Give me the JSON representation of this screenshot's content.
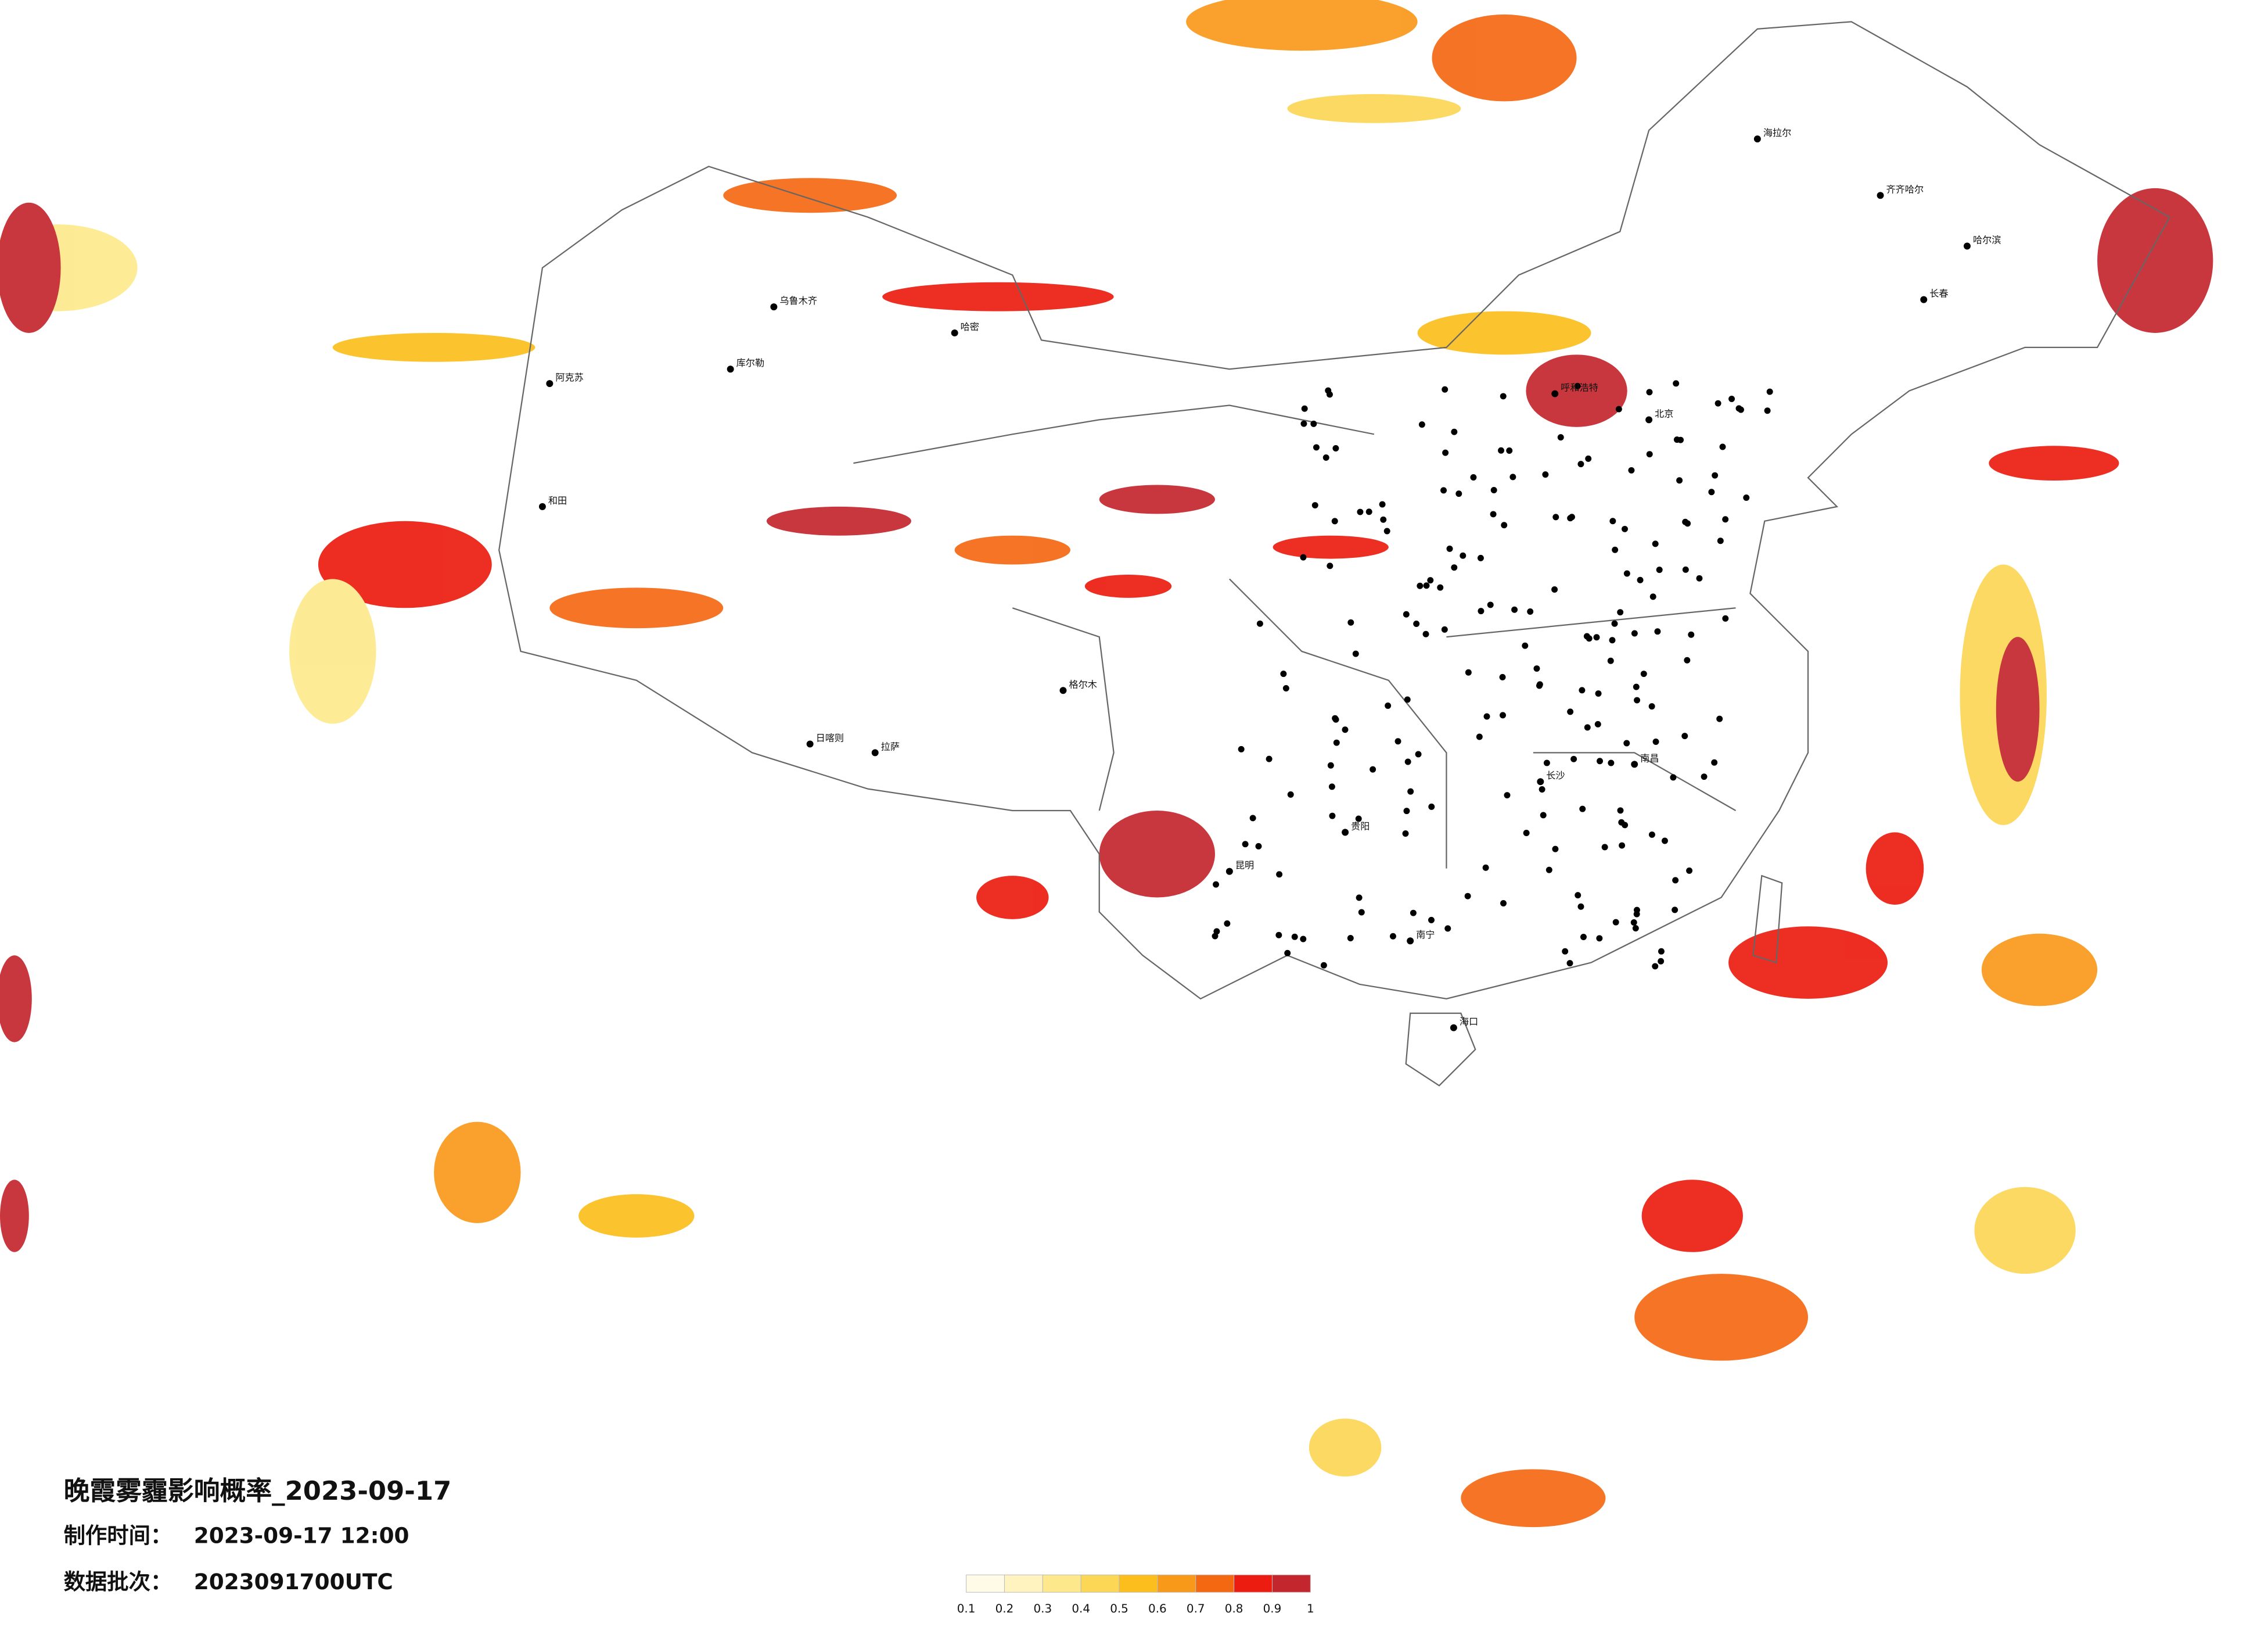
{
  "title": "晚霞雾霾影响概率_2023-09-17",
  "meta": [
    {
      "label": "制作时间：",
      "value": "2023-09-17 12:00"
    },
    {
      "label": "数据批次：",
      "value": "2023091700UTC"
    }
  ],
  "legend": {
    "ticks": [
      0.1,
      0.2,
      0.3,
      0.4,
      0.5,
      0.6,
      0.7,
      0.8,
      0.9,
      1
    ],
    "colors": [
      "#fffbe6",
      "#fff3bf",
      "#fde98c",
      "#fcd655",
      "#fbbe1c",
      "#f8991a",
      "#f46812",
      "#ec1c10",
      "#c4262e"
    ]
  },
  "cities": [
    "北京",
    "呼和浩特",
    "哈尔滨",
    "长春",
    "齐齐哈尔",
    "海拉尔",
    "阿克苏",
    "和田",
    "拉萨",
    "日喀则",
    "昆明",
    "海口",
    "乌鲁木齐",
    "库尔勒",
    "哈密",
    "格尔木",
    "南昌",
    "长沙",
    "贵阳",
    "南宁"
  ]
}
